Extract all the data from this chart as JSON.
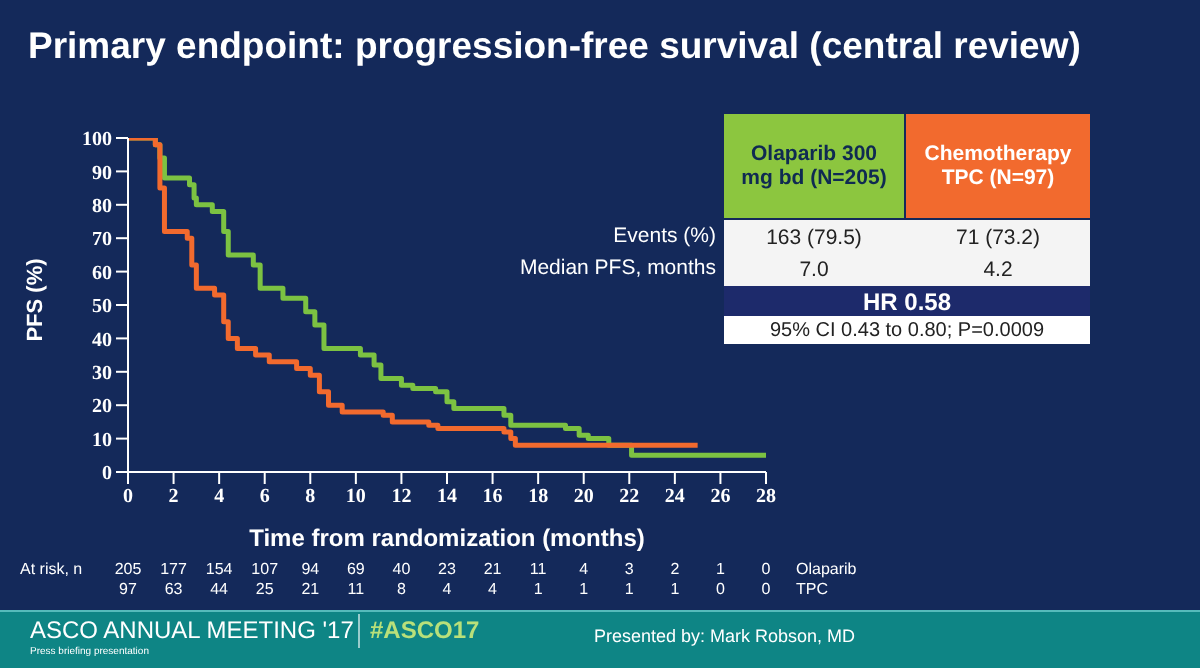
{
  "chart_data": {
    "type": "step",
    "title": "Primary endpoint: progression-free survival (central review)",
    "xlabel": "Time from randomization (months)",
    "ylabel": "PFS (%)",
    "xlim": [
      0,
      28
    ],
    "xticks": [
      0,
      2,
      4,
      6,
      8,
      10,
      12,
      14,
      16,
      18,
      20,
      22,
      24,
      26,
      28
    ],
    "ylim": [
      0,
      100
    ],
    "yticks": [
      0,
      10,
      20,
      30,
      40,
      50,
      60,
      70,
      80,
      90,
      100
    ],
    "grid": false,
    "legend": false,
    "series": [
      {
        "color": "#7cc242",
        "x": [
          0,
          1.2,
          1.4,
          1.6,
          2.7,
          2.9,
          3.0,
          3.7,
          4.2,
          4.4,
          5.5,
          5.8,
          6.8,
          7.8,
          8.2,
          8.6,
          10.2,
          10.8,
          11.1,
          12.0,
          12.5,
          13.5,
          14.0,
          14.3,
          16.5,
          16.8,
          19.2,
          19.8,
          20.2,
          21.1,
          22.1,
          28
        ],
        "values": [
          100,
          98,
          94,
          88,
          86,
          82,
          80,
          78,
          72,
          65,
          62,
          55,
          52,
          48,
          44,
          37,
          35,
          32,
          28,
          26,
          25,
          24,
          21,
          19,
          17,
          14,
          13,
          11,
          10,
          8,
          5,
          5
        ]
      },
      {
        "color": "#f26a2e",
        "x": [
          0,
          1.2,
          1.4,
          1.6,
          2.6,
          2.8,
          3.0,
          3.8,
          4.2,
          4.4,
          4.8,
          5.6,
          6.2,
          7.4,
          8.0,
          8.4,
          8.8,
          9.4,
          11.2,
          11.6,
          13.2,
          13.6,
          16.5,
          16.8,
          17.0,
          25
        ],
        "values": [
          100,
          98,
          85,
          72,
          70,
          62,
          55,
          53,
          45,
          40,
          37,
          35,
          33,
          31,
          29,
          24,
          20,
          18,
          17,
          15,
          14,
          13,
          12,
          10,
          8,
          8
        ]
      }
    ],
    "annotations": [
      "Olaparib 300 mg bd (N=205)",
      "Chemotherapy TPC (N=97)",
      "Events (%)",
      "163 (79.5)",
      "71 (73.2)",
      "Median PFS, months",
      "7.0",
      "4.2",
      "HR 0.58",
      "95% CI 0.43 to 0.80; P=0.0009",
      "At risk, n",
      "205 177 154 107 94 69 40 23 21 11 4 3 2 1 0",
      "Olaparib",
      "97 63 44 25 21 11 8 4 4 1 1 1 1 0 0",
      "TPC",
      "ASCO ANNUAL MEETING '17",
      "#ASCO17",
      "Press briefing presentation",
      "Presented by: Mark Robson, MD"
    ]
  }
}
